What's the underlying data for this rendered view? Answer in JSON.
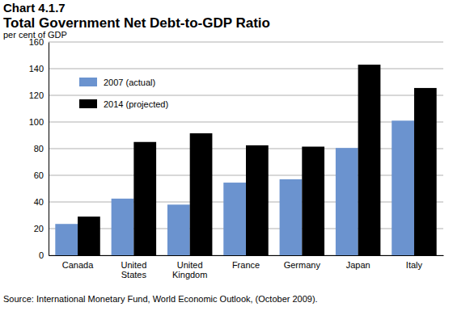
{
  "chart_data": {
    "type": "bar",
    "title": "Total Government Net Debt-to-GDP Ratio",
    "ylabel": "per cent of GDP",
    "annotations": [
      "Chart 4.1.7",
      "Source: International Monetary Fund, World Economic Outlook, (October 2009)."
    ],
    "categories": [
      "Canada",
      "United States",
      "United Kingdom",
      "France",
      "Germany",
      "Japan",
      "Italy"
    ],
    "series": [
      {
        "name": "2007 (actual)",
        "color": "#6b93cf",
        "values": [
          23.5,
          42.5,
          38,
          54.5,
          57,
          80.5,
          101
        ]
      },
      {
        "name": "2014 (projected)",
        "color": "#000000",
        "values": [
          29,
          85,
          91.5,
          82.5,
          81.5,
          143,
          125.5
        ]
      }
    ],
    "ylim": [
      0,
      160
    ],
    "yticks": [
      0,
      20,
      40,
      60,
      80,
      100,
      120,
      140,
      160
    ],
    "grid": true,
    "legend": "upper left"
  }
}
